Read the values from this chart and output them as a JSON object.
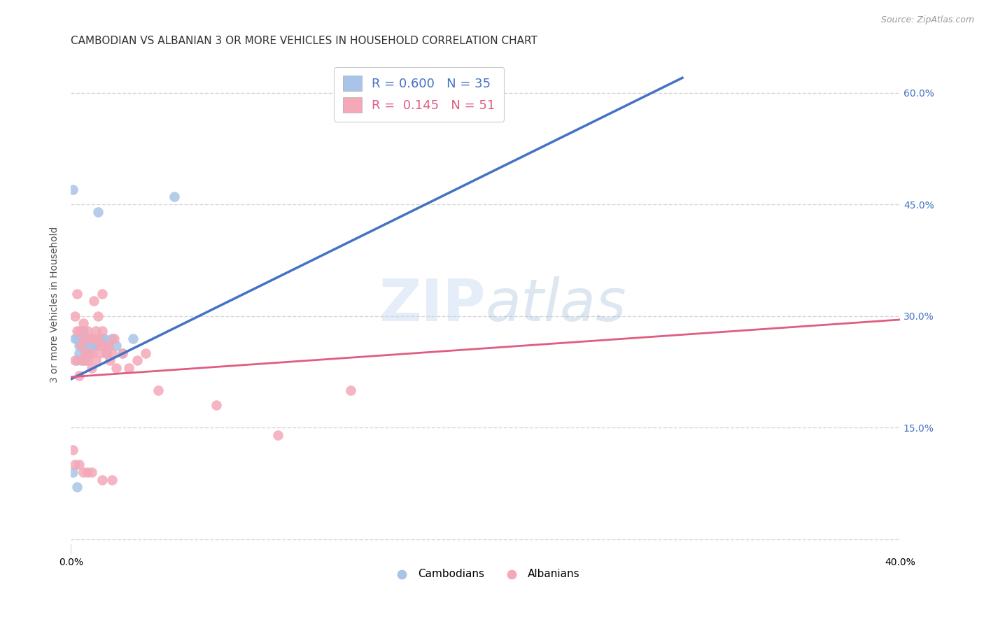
{
  "title": "CAMBODIAN VS ALBANIAN 3 OR MORE VEHICLES IN HOUSEHOLD CORRELATION CHART",
  "source": "Source: ZipAtlas.com",
  "ylabel": "3 or more Vehicles in Household",
  "xlim": [
    0.0,
    0.4
  ],
  "ylim": [
    -0.02,
    0.65
  ],
  "yticks": [
    0.0,
    0.15,
    0.3,
    0.45,
    0.6
  ],
  "ytick_labels": [
    "",
    "15.0%",
    "30.0%",
    "45.0%",
    "60.0%"
  ],
  "legend_cambodian_R": "0.600",
  "legend_cambodian_N": "35",
  "legend_albanian_R": "0.145",
  "legend_albanian_N": "51",
  "cambodian_color": "#a8c4e8",
  "albanian_color": "#f4a8b8",
  "cambodian_line_color": "#4472c4",
  "albanian_line_color": "#e05c80",
  "background_color": "#ffffff",
  "watermark_zip": "ZIP",
  "watermark_atlas": "atlas",
  "cambodian_x": [
    0.001,
    0.002,
    0.003,
    0.003,
    0.004,
    0.004,
    0.005,
    0.005,
    0.006,
    0.006,
    0.007,
    0.007,
    0.008,
    0.008,
    0.009,
    0.009,
    0.01,
    0.01,
    0.011,
    0.011,
    0.012,
    0.013,
    0.014,
    0.015,
    0.016,
    0.017,
    0.018,
    0.02,
    0.022,
    0.025,
    0.03,
    0.05,
    0.001,
    0.003,
    0.013
  ],
  "cambodian_y": [
    0.47,
    0.27,
    0.27,
    0.24,
    0.26,
    0.25,
    0.28,
    0.26,
    0.28,
    0.24,
    0.27,
    0.25,
    0.27,
    0.26,
    0.26,
    0.25,
    0.27,
    0.26,
    0.27,
    0.26,
    0.26,
    0.26,
    0.26,
    0.27,
    0.27,
    0.25,
    0.26,
    0.27,
    0.26,
    0.25,
    0.27,
    0.46,
    0.09,
    0.07,
    0.44
  ],
  "albanian_x": [
    0.001,
    0.002,
    0.002,
    0.003,
    0.003,
    0.004,
    0.004,
    0.005,
    0.005,
    0.006,
    0.006,
    0.007,
    0.007,
    0.008,
    0.008,
    0.009,
    0.009,
    0.01,
    0.01,
    0.011,
    0.011,
    0.012,
    0.012,
    0.013,
    0.013,
    0.014,
    0.014,
    0.015,
    0.015,
    0.016,
    0.017,
    0.018,
    0.019,
    0.02,
    0.021,
    0.022,
    0.025,
    0.028,
    0.032,
    0.036,
    0.042,
    0.07,
    0.1,
    0.135,
    0.002,
    0.004,
    0.006,
    0.008,
    0.01,
    0.015,
    0.02
  ],
  "albanian_y": [
    0.12,
    0.3,
    0.24,
    0.33,
    0.28,
    0.22,
    0.28,
    0.24,
    0.26,
    0.27,
    0.29,
    0.25,
    0.24,
    0.28,
    0.24,
    0.25,
    0.27,
    0.25,
    0.23,
    0.32,
    0.27,
    0.28,
    0.24,
    0.3,
    0.27,
    0.26,
    0.25,
    0.33,
    0.28,
    0.26,
    0.25,
    0.26,
    0.24,
    0.25,
    0.27,
    0.23,
    0.25,
    0.23,
    0.24,
    0.25,
    0.2,
    0.18,
    0.14,
    0.2,
    0.1,
    0.1,
    0.09,
    0.09,
    0.09,
    0.08,
    0.08
  ],
  "cam_line_x0": 0.0,
  "cam_line_y0": 0.215,
  "cam_line_x1": 0.295,
  "cam_line_y1": 0.62,
  "alb_line_x0": 0.0,
  "alb_line_y0": 0.218,
  "alb_line_x1": 0.4,
  "alb_line_y1": 0.295,
  "title_fontsize": 11,
  "axis_label_fontsize": 10,
  "tick_fontsize": 10,
  "legend_fontsize": 13,
  "grid_color": "#cccccc",
  "grid_linestyle": "--",
  "grid_alpha": 0.8
}
